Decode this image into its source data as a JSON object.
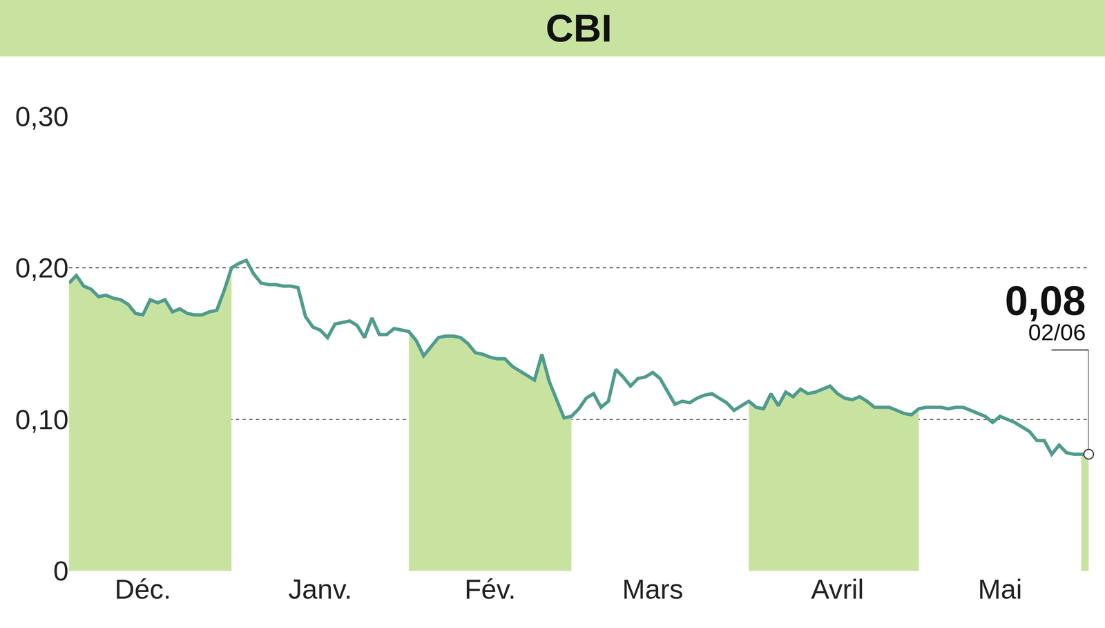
{
  "chart_data": {
    "type": "line",
    "title": "CBI",
    "categories": [
      null,
      null,
      null,
      null,
      null,
      null,
      null,
      null,
      null,
      null,
      "Déc.",
      null,
      null,
      null,
      null,
      null,
      null,
      null,
      null,
      null,
      null,
      null,
      null,
      null,
      null,
      null,
      null,
      null,
      null,
      null,
      null,
      null,
      null,
      null,
      "Janv.",
      null,
      null,
      null,
      null,
      null,
      null,
      null,
      null,
      null,
      null,
      null,
      null,
      null,
      null,
      null,
      null,
      null,
      null,
      null,
      null,
      null,
      null,
      "Fév.",
      null,
      null,
      null,
      null,
      null,
      null,
      null,
      null,
      null,
      null,
      null,
      null,
      null,
      null,
      null,
      null,
      null,
      null,
      null,
      null,
      null,
      "Mars",
      null,
      null,
      null,
      null,
      null,
      null,
      null,
      null,
      null,
      null,
      null,
      null,
      null,
      null,
      null,
      null,
      null,
      null,
      null,
      null,
      null,
      null,
      null,
      null,
      "Avril",
      null,
      null,
      null,
      null,
      null,
      null,
      null,
      null,
      null,
      null,
      null,
      null,
      null,
      null,
      null,
      null,
      null,
      null,
      null,
      null,
      null,
      "Mai",
      null,
      null,
      null,
      null,
      null,
      null,
      null,
      null,
      null,
      null,
      null,
      null
    ],
    "values": [
      0.19,
      0.195,
      0.188,
      0.186,
      0.181,
      0.182,
      0.18,
      0.179,
      0.176,
      0.17,
      0.169,
      0.179,
      0.177,
      0.179,
      0.171,
      0.173,
      0.17,
      0.169,
      0.169,
      0.171,
      0.172,
      0.185,
      0.2,
      0.203,
      0.205,
      0.196,
      0.19,
      0.189,
      0.189,
      0.188,
      0.188,
      0.187,
      0.168,
      0.161,
      0.159,
      0.154,
      0.163,
      0.164,
      0.165,
      0.162,
      0.154,
      0.167,
      0.156,
      0.156,
      0.16,
      0.159,
      0.158,
      0.152,
      0.142,
      0.148,
      0.154,
      0.155,
      0.155,
      0.154,
      0.15,
      0.144,
      0.143,
      0.141,
      0.14,
      0.14,
      0.135,
      0.132,
      0.129,
      0.126,
      0.143,
      0.125,
      0.113,
      0.101,
      0.102,
      0.107,
      0.114,
      0.117,
      0.108,
      0.112,
      0.133,
      0.128,
      0.122,
      0.127,
      0.128,
      0.131,
      0.127,
      0.118,
      0.11,
      0.112,
      0.111,
      0.114,
      0.116,
      0.117,
      0.114,
      0.111,
      0.106,
      0.109,
      0.112,
      0.108,
      0.107,
      0.117,
      0.109,
      0.118,
      0.115,
      0.12,
      0.117,
      0.118,
      0.12,
      0.122,
      0.117,
      0.114,
      0.113,
      0.115,
      0.112,
      0.108,
      0.108,
      0.108,
      0.106,
      0.104,
      0.103,
      0.107,
      0.108,
      0.108,
      0.108,
      0.107,
      0.108,
      0.108,
      0.106,
      0.104,
      0.102,
      0.098,
      0.102,
      0.1,
      0.098,
      0.095,
      0.092,
      0.086,
      0.086,
      0.077,
      0.083,
      0.078,
      0.077,
      0.077,
      0.077
    ],
    "color": "#4f9c8e",
    "ylim": [
      0,
      0.3
    ],
    "yticks": [
      0,
      {
        "value": 0.1,
        "label": "0,10"
      },
      {
        "value": 0.2,
        "label": "0,20"
      },
      {
        "value": 0.3,
        "label": "0,30"
      }
    ],
    "grid": true,
    "annotations": [
      {
        "text": "0,08"
      },
      {
        "text": "02/06"
      }
    ]
  }
}
